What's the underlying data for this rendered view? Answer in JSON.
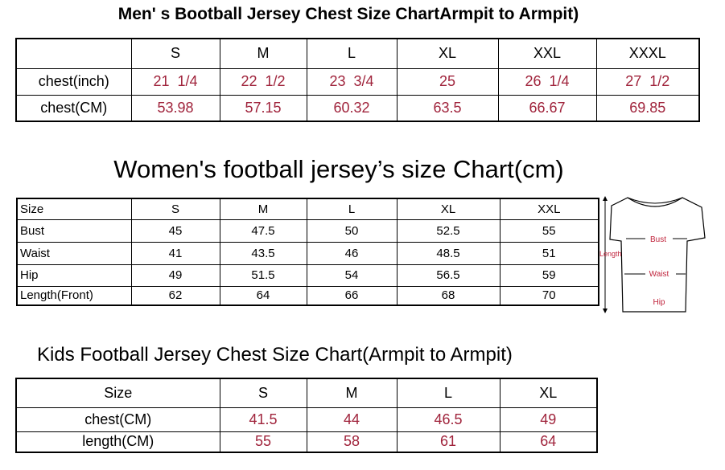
{
  "men": {
    "title": "Men' s Bootball Jersey Chest Size ChartArmpit to Armpit)",
    "header": [
      "S",
      "M",
      "L",
      "XL",
      "XXL",
      "XXXL"
    ],
    "rows": [
      [
        "chest(inch)",
        "21  1/4",
        "22  1/2",
        "23  3/4",
        25,
        "26  1/4",
        "27  1/2"
      ],
      [
        "chest(CM)",
        53.98,
        57.15,
        60.32,
        63.5,
        66.67,
        69.85
      ]
    ]
  },
  "women": {
    "title": "Women's football jersey’s size Chart(cm)",
    "header": [
      "Size",
      "S",
      "M",
      "L",
      "XL",
      "XXL"
    ],
    "rows": [
      [
        "Bust",
        45,
        47.5,
        50,
        52.5,
        55
      ],
      [
        "Waist",
        41,
        43.5,
        46,
        48.5,
        51
      ],
      [
        "Hip",
        49,
        51.5,
        54,
        56.5,
        59
      ],
      [
        "Length(Front)",
        62,
        64,
        66,
        68,
        70
      ]
    ],
    "diagram": {
      "bust": "Bust",
      "waist": "Waist",
      "hip": "Hip",
      "length": "Length"
    }
  },
  "kids": {
    "title": "Kids Football Jersey Chest Size Chart(Armpit to Armpit)",
    "header": [
      "Size",
      "S",
      "M",
      "L",
      "XL"
    ],
    "rows": [
      [
        "chest(CM)",
        41.5,
        44,
        46.5,
        49
      ],
      [
        "length(CM)",
        55,
        58,
        61,
        64
      ]
    ]
  }
}
